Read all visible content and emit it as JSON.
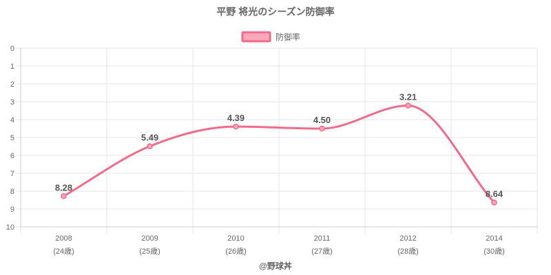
{
  "chart_data": {
    "type": "line",
    "title": "平野 将光のシーズン防御率",
    "legend": {
      "position": "top",
      "entries": [
        "防御率"
      ]
    },
    "categories": [
      {
        "year": "2008",
        "age": "(24歳)"
      },
      {
        "year": "2009",
        "age": "(25歳)"
      },
      {
        "year": "2010",
        "age": "(26歳)"
      },
      {
        "year": "2011",
        "age": "(27歳)"
      },
      {
        "year": "2012",
        "age": "(28歳)"
      },
      {
        "year": "2014",
        "age": "(30歳)"
      }
    ],
    "series": [
      {
        "name": "防御率",
        "values": [
          8.28,
          5.49,
          4.39,
          4.5,
          3.21,
          8.64
        ],
        "labels": [
          "8.28",
          "5.49",
          "4.39",
          "4.50",
          "3.21",
          "8.64"
        ]
      }
    ],
    "y_axis": {
      "reversed": true,
      "min": 0,
      "max": 10,
      "ticks": [
        "0",
        "1",
        "2",
        "3",
        "4",
        "5",
        "6",
        "7",
        "8",
        "9",
        "10"
      ]
    },
    "grid": true,
    "colors": {
      "line": "#f06a8a",
      "fill": "#f7a8bb",
      "grid": "#e6e6e6",
      "axis": "#cccccc",
      "text": "#666666"
    },
    "credit": "@野球丼"
  }
}
